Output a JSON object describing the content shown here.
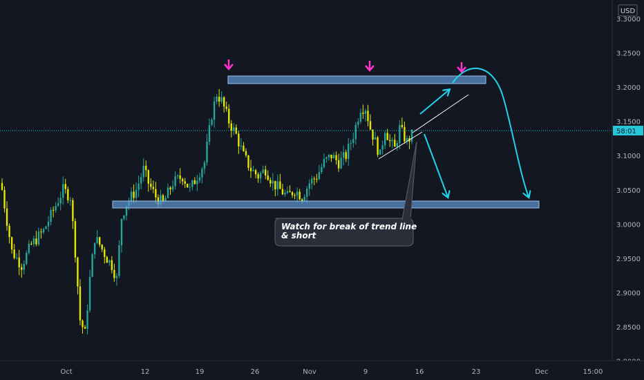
{
  "chart_data": {
    "type": "candlestick",
    "currency": "USD",
    "y_ticks": [
      "3.3000",
      "3.2500",
      "3.2000",
      "3.1500",
      "3.1000",
      "3.0500",
      "3.0000",
      "2.9500",
      "2.9000",
      "2.8500",
      "2.8000"
    ],
    "y_tick_values": [
      3.3,
      3.25,
      3.2,
      3.15,
      3.1,
      3.05,
      3.0,
      2.95,
      2.9,
      2.85,
      2.8
    ],
    "ylim": [
      2.8,
      3.3
    ],
    "x_ticks": [
      "Oct",
      "12",
      "19",
      "26",
      "Nov",
      "9",
      "16",
      "23",
      "Dec",
      "15:00"
    ],
    "current_price_label": "58:01",
    "current_price": 3.133,
    "up_color": "#26a69a",
    "down_color": "#e6e600",
    "candle_key_closes": [
      [
        0,
        3.05
      ],
      [
        4,
        2.96
      ],
      [
        8,
        2.94
      ],
      [
        12,
        2.97
      ],
      [
        17,
        2.99
      ],
      [
        21,
        3.02
      ],
      [
        25,
        3.05
      ],
      [
        28,
        3.04
      ],
      [
        30,
        2.96
      ],
      [
        32,
        2.86
      ],
      [
        34,
        2.84
      ],
      [
        36,
        2.92
      ],
      [
        38,
        2.98
      ],
      [
        40,
        2.97
      ],
      [
        43,
        2.95
      ],
      [
        45,
        2.94
      ],
      [
        47,
        2.92
      ],
      [
        49,
        3.01
      ],
      [
        51,
        3.03
      ],
      [
        55,
        3.05
      ],
      [
        58,
        3.08
      ],
      [
        60,
        3.06
      ],
      [
        63,
        3.04
      ],
      [
        66,
        3.03
      ],
      [
        70,
        3.06
      ],
      [
        74,
        3.07
      ],
      [
        77,
        3.05
      ],
      [
        80,
        3.07
      ],
      [
        83,
        3.09
      ],
      [
        86,
        3.16
      ],
      [
        88,
        3.19
      ],
      [
        90,
        3.18
      ],
      [
        93,
        3.15
      ],
      [
        96,
        3.13
      ],
      [
        99,
        3.1
      ],
      [
        102,
        3.08
      ],
      [
        105,
        3.07
      ],
      [
        108,
        3.08
      ],
      [
        111,
        3.06
      ],
      [
        114,
        3.05
      ],
      [
        117,
        3.04
      ],
      [
        120,
        3.05
      ],
      [
        123,
        3.04
      ],
      [
        126,
        3.06
      ],
      [
        129,
        3.07
      ],
      [
        132,
        3.09
      ],
      [
        135,
        3.1
      ],
      [
        138,
        3.09
      ],
      [
        141,
        3.1
      ],
      [
        144,
        3.13
      ],
      [
        147,
        3.17
      ],
      [
        149,
        3.17
      ],
      [
        151,
        3.14
      ],
      [
        153,
        3.12
      ],
      [
        155,
        3.1
      ],
      [
        157,
        3.14
      ],
      [
        159,
        3.12
      ],
      [
        161,
        3.11
      ],
      [
        163,
        3.14
      ],
      [
        166,
        3.12
      ],
      [
        168,
        3.13
      ]
    ],
    "zones": [
      {
        "name": "resistance",
        "from": 3.205,
        "to": 3.215
      },
      {
        "name": "support",
        "from": 3.023,
        "to": 3.033
      }
    ],
    "annotation": "Watch for break of trend line & short"
  }
}
